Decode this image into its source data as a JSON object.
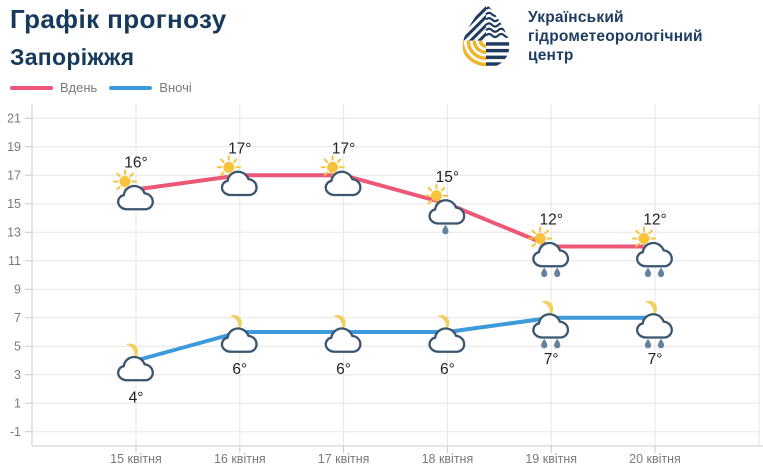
{
  "header": {
    "title": "Графік прогнозу",
    "subtitle": "Запоріжжя"
  },
  "brand": {
    "org": "Український гідрометеорологічний центр",
    "lines": [
      "Український",
      "гідрометеорологічний",
      "центр"
    ],
    "navy": "#1f3a5f",
    "yellow": "#f0b429"
  },
  "chart_data": {
    "type": "line",
    "title": "Графік прогнозу Запоріжжя",
    "categories": [
      "15 квітня",
      "16 квітня",
      "17 квітня",
      "18 квітня",
      "19 квітня",
      "20 квітня"
    ],
    "series": [
      {
        "key": "day",
        "name": "Вдень",
        "color": "#ee5878",
        "symbol": "sun",
        "values": [
          16,
          17,
          17,
          15,
          12,
          12
        ],
        "point_labels": [
          "16°",
          "17°",
          "17°",
          "15°",
          "12°",
          "12°"
        ],
        "icons": [
          "sun-behind-cloud",
          "sun-behind-cloud",
          "sun-behind-cloud",
          "sun-behind-cloud-light-rain",
          "sun-behind-cloud-rain",
          "sun-behind-cloud-rain"
        ],
        "rain_drops": [
          0,
          0,
          0,
          1,
          2,
          2
        ],
        "label_position": "above"
      },
      {
        "key": "night",
        "name": "Вночі",
        "color": "#3d9bdc",
        "symbol": "moon",
        "values": [
          4,
          6,
          6,
          6,
          7,
          7
        ],
        "point_labels": [
          "4°",
          "6°",
          "6°",
          "6°",
          "7°",
          "7°"
        ],
        "icons": [
          "moon-behind-cloud",
          "moon-behind-cloud",
          "moon-behind-cloud",
          "moon-behind-cloud",
          "moon-behind-cloud-rain",
          "moon-behind-cloud-rain"
        ],
        "rain_drops": [
          0,
          0,
          0,
          0,
          2,
          2
        ],
        "label_position": "below"
      }
    ],
    "ylim": [
      -2,
      22
    ],
    "yticks": [
      21,
      19,
      17,
      15,
      13,
      11,
      9,
      7,
      5,
      3,
      1,
      -1
    ],
    "unit": "°",
    "grid": true,
    "legend_position": "top-left",
    "colors": {
      "grid": "#e6e6e6",
      "axis": "#c9c9c9",
      "sun": "#f9c33c",
      "moon": "#f3cf5d",
      "cloud_stroke": "#3a556f",
      "cloud_fill": "#ffffff",
      "drop": "#64819f"
    }
  }
}
